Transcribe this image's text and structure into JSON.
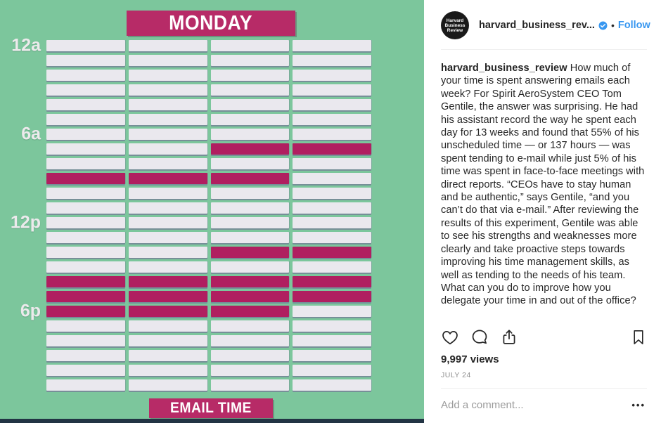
{
  "media": {
    "title": "MONDAY",
    "footer": "EMAIL TIME",
    "hour_labels": [
      {
        "row": 0,
        "text": "12a"
      },
      {
        "row": 6,
        "text": "6a"
      },
      {
        "row": 12,
        "text": "12p"
      },
      {
        "row": 18,
        "text": "6p"
      }
    ],
    "grid": {
      "rows": 24,
      "cols": 4,
      "highlight_cells": [
        [
          7,
          2
        ],
        [
          7,
          3
        ],
        [
          9,
          0
        ],
        [
          9,
          1
        ],
        [
          9,
          2
        ],
        [
          14,
          2
        ],
        [
          14,
          3
        ],
        [
          16,
          0
        ],
        [
          16,
          1
        ],
        [
          16,
          2
        ],
        [
          16,
          3
        ],
        [
          17,
          0
        ],
        [
          17,
          1
        ],
        [
          17,
          2
        ],
        [
          17,
          3
        ],
        [
          18,
          0
        ],
        [
          18,
          1
        ],
        [
          18,
          2
        ]
      ]
    },
    "colors": {
      "background": "#7cc69c",
      "cell": "#eae8ee",
      "highlight": "#b01f60",
      "banner": "#b72b67",
      "progress_bar": "#223444"
    }
  },
  "header": {
    "avatar_lines": [
      "Harvard",
      "Business",
      "Review"
    ],
    "username": "harvard_business_rev...",
    "separator": "•",
    "follow": "Follow"
  },
  "caption": {
    "username": "harvard_business_review",
    "text": " How much of your time is spent answering emails each week? For Spirit AeroSystem CEO Tom Gentile, the answer was surprising. He had his assistant record the way he spent each day for 13 weeks and found that 55% of his unscheduled time — or 137 hours — was spent tending to e-mail while just 5% of his time was spent in face-to-face meetings with direct reports. “CEOs have to stay human and be authentic,” says Gentile, “and you can’t do that via e-mail.” After reviewing the results of this experiment, Gentile was able to see his strengths and weaknesses more clearly and take proactive steps towards improving his time management skills, as well as tending to the needs of his team. What can you do to improve how you delegate your time in and out of the office?"
  },
  "stats": {
    "views": "9,997 views"
  },
  "timestamp": "JULY 24",
  "comment_box": {
    "placeholder": "Add a comment...",
    "more_options": "•••"
  }
}
